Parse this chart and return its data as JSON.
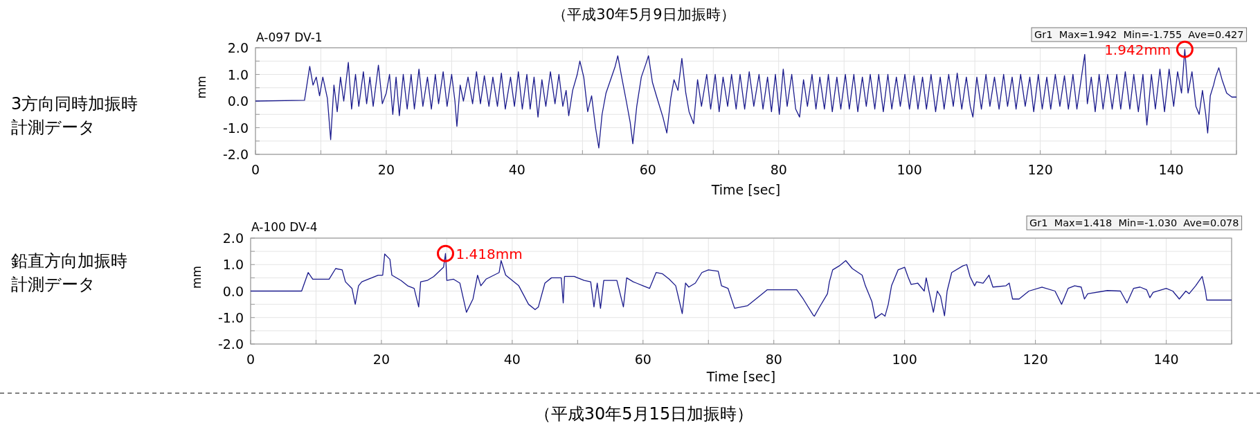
{
  "chart_data": [
    {
      "type": "line",
      "title": "（平成30年5月9日加振時）",
      "subtitle": "A-097 DV-1",
      "xlabel": "Time [sec]",
      "ylabel": "mm",
      "grid": true,
      "annotations": [
        "3方向同時加振時計測データ",
        "Gr1  Max=1.942  Min=-1.755  Ave=0.427",
        {
          "text": "1.942mm",
          "x": 142.1,
          "y": 1.942
        }
      ],
      "xlim": [
        0,
        150
      ],
      "xticks": [
        0,
        {
          "value": 10,
          "label": null
        },
        20,
        {
          "value": 30,
          "label": null
        },
        40,
        {
          "value": 50,
          "label": null
        },
        60,
        {
          "value": 70,
          "label": null
        },
        80,
        {
          "value": 90,
          "label": null
        },
        100,
        {
          "value": 110,
          "label": null
        },
        120,
        {
          "value": 130,
          "label": null
        },
        140,
        {
          "value": 150,
          "label": null
        }
      ],
      "ylim": [
        -2,
        2
      ],
      "yticks": [
        {
          "value": 2,
          "label": "2.0"
        },
        {
          "value": 1.5,
          "label": null
        },
        {
          "value": 1,
          "label": "1.0"
        },
        {
          "value": 0.5,
          "label": null
        },
        {
          "value": 0,
          "label": "0.0"
        },
        {
          "value": -0.5,
          "label": null
        },
        {
          "value": -1,
          "label": "-1.0"
        },
        {
          "value": -1.5,
          "label": null
        },
        {
          "value": -2,
          "label": "-2.0"
        }
      ],
      "series": [
        {
          "color": "#1a1a8c",
          "x": [
            0,
            7.5,
            8.3,
            8.8,
            9.3,
            9.8,
            10.3,
            11,
            11.5,
            12,
            12.5,
            13,
            13.5,
            14.2,
            14.7,
            15.3,
            15.8,
            16.5,
            17,
            17.5,
            18,
            18.8,
            19.4,
            20,
            20.5,
            21,
            21.5,
            22,
            22.6,
            23.2,
            23.8,
            24.3,
            25,
            25.6,
            26.3,
            26.9,
            27.5,
            28,
            28.7,
            29.3,
            30,
            30.5,
            30.8,
            31.3,
            31.8,
            32.5,
            33.2,
            33.8,
            34.4,
            35,
            35.7,
            36.3,
            37,
            37.6,
            38.2,
            39,
            39.6,
            40.2,
            40.8,
            41.5,
            42,
            42.6,
            43.2,
            43.8,
            44.4,
            45.1,
            45.8,
            46.4,
            47,
            47.5,
            47.9,
            48.5,
            49.2,
            49.6,
            50.2,
            50.8,
            51.4,
            52,
            52.5,
            53,
            53.6,
            54.3,
            55,
            55.4,
            56,
            56.7,
            57.3,
            57.7,
            58.3,
            59,
            59.7,
            60.1,
            60.7,
            61.3,
            61.8,
            62.3,
            62.9,
            63.5,
            64,
            64.6,
            65.2,
            65.8,
            66.3,
            67,
            67.6,
            68.2,
            69,
            69.6,
            70.3,
            70.9,
            71.5,
            72.2,
            72.8,
            73.5,
            74.1,
            74.8,
            75.5,
            76.2,
            77,
            77.6,
            78.3,
            78.9,
            79.5,
            80.1,
            80.7,
            81.3,
            82,
            82.6,
            83.2,
            83.8,
            84.4,
            85.1,
            85.7,
            86.3,
            87,
            87.6,
            88.2,
            88.9,
            89.5,
            90.2,
            90.8,
            91.5,
            92.1,
            92.8,
            93.4,
            94,
            94.7,
            95.3,
            96,
            96.7,
            97.3,
            98,
            98.6,
            99.3,
            100,
            100.7,
            101.3,
            102,
            102.6,
            103.3,
            104,
            104.7,
            105.3,
            106,
            106.7,
            107.3,
            108,
            108.7,
            109.3,
            109.7,
            110.3,
            111,
            111.7,
            112.3,
            113,
            113.7,
            114.4,
            115,
            115.7,
            116.3,
            117,
            117.7,
            118.4,
            119,
            119.7,
            120.3,
            121,
            121.6,
            122.3,
            123,
            123.7,
            124.3,
            125,
            125.6,
            126.3,
            126.8,
            127.2,
            127.8,
            128.4,
            129,
            129.6,
            130.3,
            131,
            131.7,
            132.3,
            133,
            133.7,
            134.3,
            135,
            135.7,
            136.3,
            137,
            137.6,
            138.3,
            139,
            139.7,
            140.4,
            141,
            141.6,
            142.1,
            142.6,
            143.2,
            143.8,
            144.3,
            144.8,
            145.3,
            145.6,
            146,
            146.5,
            146.8,
            147.3,
            147.8,
            148.5,
            149.3,
            150
          ],
          "values": [
            0,
            0.03,
            1.3,
            0.6,
            0.9,
            0.2,
            0.9,
            0.1,
            -1.45,
            0.6,
            -0.4,
            0.9,
            0,
            1.45,
            -0.3,
            1,
            -0.2,
            1.1,
            -0.1,
            0.9,
            -0.2,
            1.35,
            -0.1,
            0.3,
            1,
            -0.5,
            0.9,
            -0.55,
            1,
            -0.3,
            1,
            -0.3,
            1.2,
            -0.2,
            0.9,
            -0.3,
            1,
            -0.1,
            1.1,
            -0.2,
            1,
            0,
            -0.95,
            0.6,
            0,
            0.9,
            -0.1,
            1.1,
            -0.1,
            0.95,
            -0.2,
            0.9,
            -0.2,
            1.05,
            -0.3,
            0.9,
            -0.2,
            1.1,
            -0.3,
            1,
            -0.3,
            0.9,
            -0.6,
            0.8,
            -0.2,
            1.1,
            -0.1,
            1,
            -0.2,
            0.4,
            -0.55,
            0.4,
            1,
            1.5,
            0.9,
            -0.4,
            0.2,
            -1,
            -1.76,
            -0.5,
            0.3,
            0.8,
            1.3,
            1.7,
            0.9,
            0,
            -0.8,
            -1.6,
            -0.2,
            0.9,
            1.4,
            1.7,
            0.7,
            0.2,
            -0.2,
            -0.6,
            -1.2,
            0.1,
            0.8,
            0.4,
            1.6,
            0.3,
            -0.4,
            -0.85,
            0.8,
            -0.2,
            1,
            -0.3,
            1,
            -0.4,
            0.9,
            -0.2,
            1,
            -0.3,
            1,
            -0.3,
            1.1,
            -0.2,
            1,
            -0.3,
            0.9,
            -0.4,
            1,
            -0.5,
            1.2,
            -0.2,
            1,
            -0.3,
            -0.6,
            0.8,
            -0.2,
            1,
            -0.3,
            0.9,
            -0.3,
            1,
            -0.4,
            0.9,
            -0.3,
            1,
            -0.3,
            1,
            -0.4,
            0.9,
            -0.2,
            1,
            -0.3,
            1,
            -0.4,
            1,
            -0.3,
            0.9,
            -0.2,
            1,
            -0.3,
            0.95,
            -0.3,
            0.9,
            -0.3,
            1,
            -0.4,
            0.9,
            -0.3,
            1,
            -0.2,
            1.05,
            -0.3,
            0.9,
            -0.2,
            -0.6,
            0.9,
            -0.3,
            1,
            -0.2,
            0.9,
            -0.3,
            1,
            -0.2,
            0.9,
            -0.3,
            1,
            -0.2,
            0.9,
            -0.4,
            1,
            -0.3,
            0.9,
            -0.3,
            1,
            -0.2,
            0.95,
            -0.3,
            1,
            -0.3,
            0.9,
            1.75,
            -0.1,
            0.9,
            -0.4,
            1,
            -0.3,
            1,
            -0.3,
            1,
            -0.3,
            1.1,
            -0.3,
            1,
            -0.4,
            1,
            -0.9,
            1,
            -0.3,
            1.2,
            -0.4,
            1.2,
            -0.2,
            1.1,
            0.3,
            1.94,
            0.3,
            1.1,
            -0.2,
            -0.5,
            0.4,
            -0.5,
            -1.2,
            0.2,
            0.6,
            0.9,
            1.25,
            0.8,
            0.3,
            0.15,
            0.15
          ]
        }
      ]
    },
    {
      "type": "line",
      "subtitle": "A-100 DV-4",
      "xlabel": "Time [sec]",
      "ylabel": "mm",
      "grid": true,
      "annotations": [
        "鉛直方向加振時計測データ",
        "Gr1  Max=1.418  Min=-1.030  Ave=0.078",
        {
          "text": "1.418mm",
          "x": 29.8,
          "y": 1.418
        },
        "（平成30年5月15日加振時）"
      ],
      "xlim": [
        0,
        150
      ],
      "xticks": [
        0,
        {
          "value": 10,
          "label": null
        },
        20,
        {
          "value": 30,
          "label": null
        },
        40,
        {
          "value": 50,
          "label": null
        },
        60,
        {
          "value": 70,
          "label": null
        },
        80,
        {
          "value": 90,
          "label": null
        },
        100,
        {
          "value": 110,
          "label": null
        },
        120,
        {
          "value": 130,
          "label": null
        },
        140,
        {
          "value": 150,
          "label": null
        }
      ],
      "ylim": [
        -2,
        2
      ],
      "yticks": [
        {
          "value": 2,
          "label": "2.0"
        },
        {
          "value": 1.5,
          "label": null
        },
        {
          "value": 1,
          "label": "1.0"
        },
        {
          "value": 0.5,
          "label": null
        },
        {
          "value": 0,
          "label": "0.0"
        },
        {
          "value": -0.5,
          "label": null
        },
        {
          "value": -1,
          "label": "-1.0"
        },
        {
          "value": -1.5,
          "label": null
        },
        {
          "value": -2,
          "label": "-2.0"
        }
      ],
      "series": [
        {
          "color": "#1a1a8c",
          "x": [
            0,
            7.8,
            8.8,
            9.5,
            12,
            13,
            14,
            14.5,
            15.5,
            16,
            16.5,
            17,
            19.5,
            20.2,
            20.5,
            21.3,
            21.6,
            23,
            24,
            25,
            25.7,
            26,
            27,
            28,
            29.5,
            29.8,
            30,
            31,
            32,
            33,
            34,
            34.7,
            35.2,
            36,
            38,
            38.3,
            39,
            41,
            42.5,
            43.5,
            44,
            45,
            46,
            47.5,
            47.8,
            48,
            49.5,
            50,
            51,
            52,
            52.5,
            53,
            53.5,
            54,
            56,
            57,
            57.5,
            58.5,
            59,
            60,
            61,
            62,
            63,
            64,
            65,
            66,
            66.5,
            67,
            68,
            69,
            70,
            71.5,
            72,
            73,
            74,
            76,
            78.5,
            79,
            83.5,
            84.5,
            86,
            86.2,
            87,
            88.2,
            88.5,
            89,
            90,
            91,
            92,
            93.5,
            94,
            95,
            95.5,
            96.5,
            97,
            97.5,
            98,
            99,
            100,
            100.5,
            101,
            102,
            103,
            103.3,
            104.4,
            105,
            105.5,
            106.1,
            106.5,
            107.2,
            108.9,
            109.5,
            110,
            110.7,
            111,
            112,
            112.9,
            113.5,
            115.5,
            116,
            116.5,
            117.5,
            119,
            121,
            123,
            124,
            125,
            126,
            127,
            127.5,
            128,
            131,
            133,
            134,
            135,
            136,
            137,
            137.5,
            138,
            140,
            141,
            142,
            143,
            143.5,
            144.5,
            145.5,
            146,
            146.2,
            150
          ],
          "values": [
            0,
            0,
            0.7,
            0.45,
            0.45,
            0.85,
            0.8,
            0.35,
            0.1,
            -0.5,
            0.2,
            0.35,
            0.6,
            0.6,
            1.4,
            1.2,
            0.6,
            0.4,
            0.2,
            0.1,
            -0.6,
            0.35,
            0.4,
            0.55,
            0.9,
            1.42,
            0.4,
            0.45,
            0.3,
            -0.8,
            -0.3,
            0.6,
            0.2,
            0.45,
            0.7,
            1.15,
            0.6,
            0.2,
            -0.5,
            -0.7,
            -0.6,
            0.3,
            0.5,
            0.5,
            -0.45,
            0.55,
            0.55,
            0.5,
            0.4,
            0.35,
            -0.6,
            0.3,
            -0.65,
            0.4,
            0.4,
            -0.6,
            0.5,
            0.35,
            0.3,
            0.2,
            0.1,
            0.7,
            0.65,
            0.45,
            0.2,
            -0.85,
            0.3,
            0.15,
            0.3,
            0.7,
            0.8,
            0.75,
            0.2,
            0.1,
            -0.65,
            -0.55,
            -0.05,
            0.05,
            0.05,
            -0.3,
            -0.9,
            -0.95,
            -0.6,
            -0.1,
            0.35,
            0.8,
            0.95,
            1.15,
            0.85,
            0.6,
            0.2,
            -0.4,
            -1.03,
            -0.85,
            -0.95,
            -0.5,
            0.2,
            0.8,
            0.9,
            0.55,
            0.25,
            0.3,
            0,
            0.5,
            -0.8,
            0,
            -0.2,
            -0.93,
            0,
            0.7,
            0.95,
            1,
            0.55,
            0.2,
            0.35,
            0.3,
            0.6,
            0.15,
            0.2,
            0.3,
            -0.3,
            -0.3,
            0,
            0.15,
            0,
            -0.5,
            0.1,
            0.2,
            0.15,
            -0.3,
            -0.1,
            0.02,
            0,
            -0.45,
            0.1,
            0.15,
            0.05,
            -0.25,
            -0.05,
            0.1,
            0,
            -0.3,
            0,
            -0.1,
            0.2,
            0.55,
            0,
            -0.34,
            -0.34
          ]
        }
      ]
    }
  ]
}
